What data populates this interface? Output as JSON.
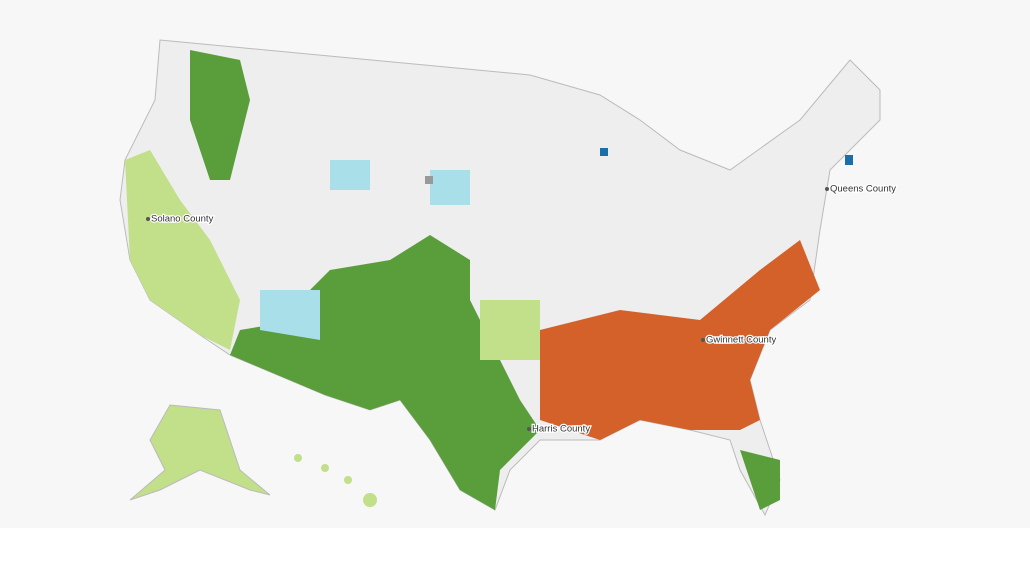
{
  "labels": [
    "Solano County",
    "Queens County",
    "Gwinnett County",
    "Harris County"
  ]
}
